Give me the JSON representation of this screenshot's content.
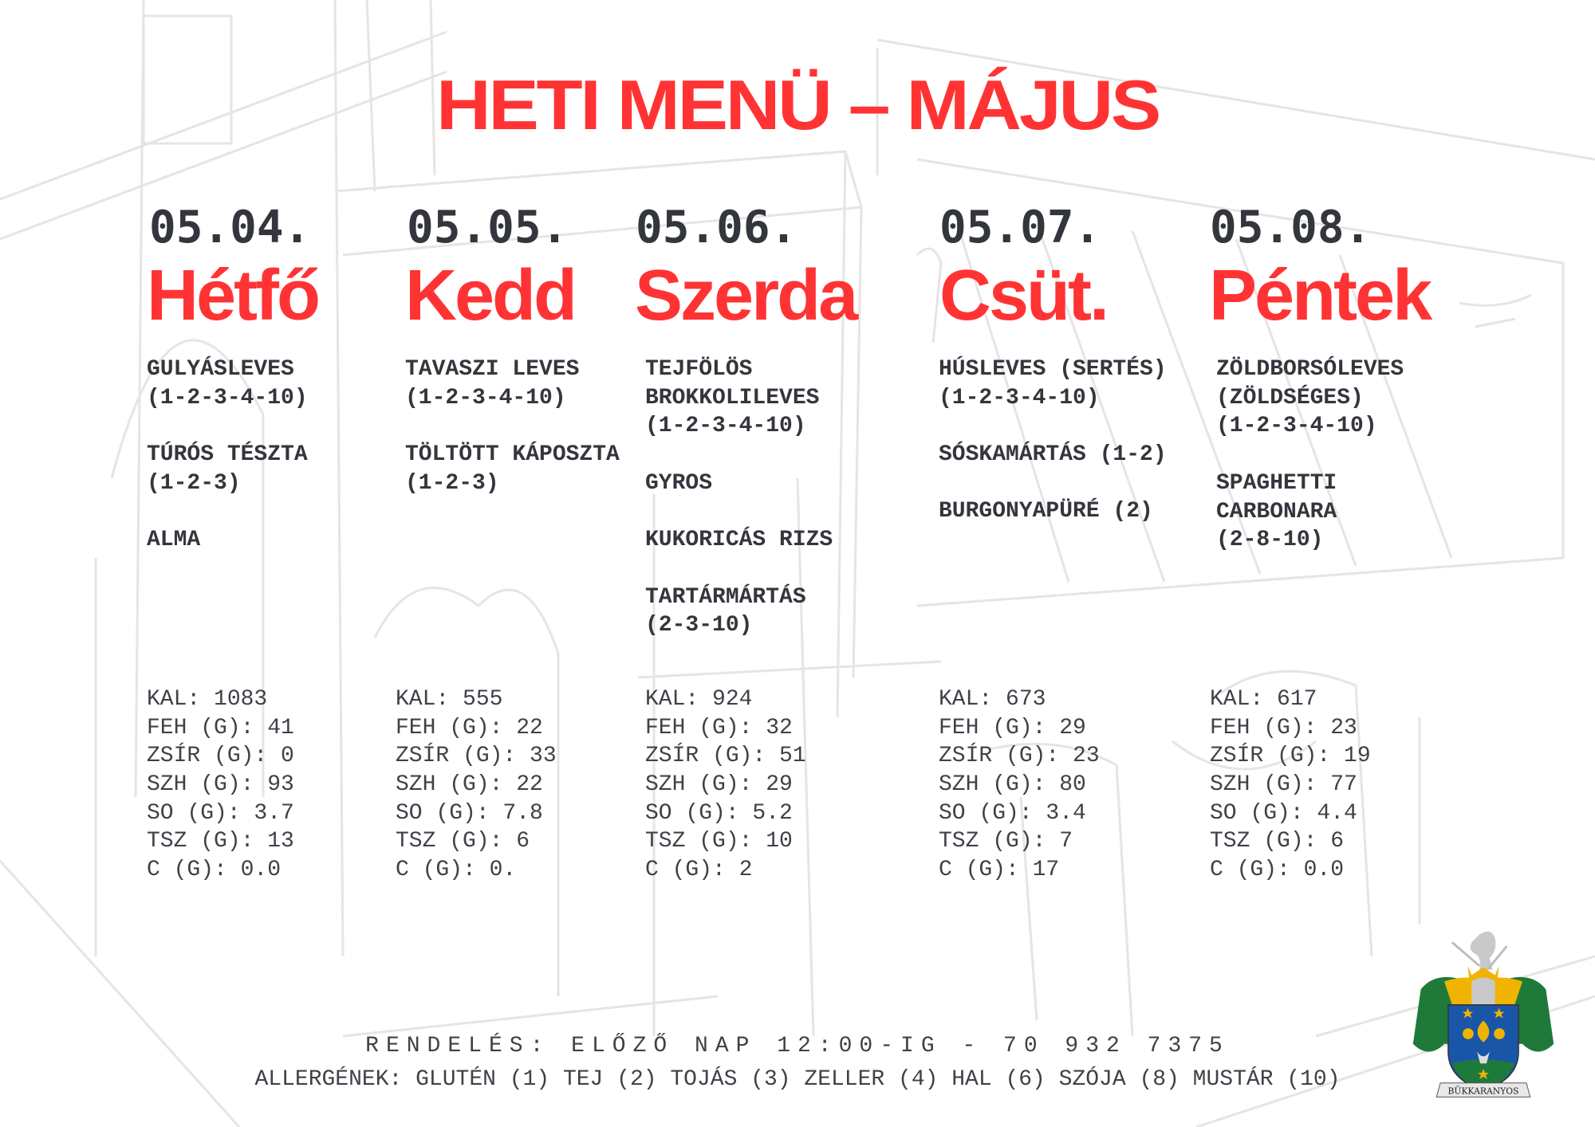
{
  "title": "HETI MENÜ – MÁJUS",
  "days": [
    {
      "date": "05.04.",
      "name": "Hétfő",
      "dishes": [
        "GULYÁSLEVES\n(1-2-3-4-10)",
        "TÚRÓS TÉSZTA\n(1-2-3)",
        "ALMA"
      ],
      "nutrition": [
        "KAL: 1083",
        "FEH (G): 41",
        "ZSÍR (G): 0",
        "SZH (G): 93",
        "SO (G): 3.7",
        "TSZ (G): 13",
        "C (G): 0.0"
      ]
    },
    {
      "date": "05.05.",
      "name": "Kedd",
      "dishes": [
        "TAVASZI LEVES\n(1-2-3-4-10)",
        "TÖLTÖTT KÁPOSZTA\n(1-2-3)"
      ],
      "nutrition": [
        "KAL: 555",
        "FEH (G): 22",
        "ZSÍR (G): 33",
        "SZH (G): 22",
        "SO (G): 7.8",
        "TSZ (G): 6",
        "C (G): 0."
      ]
    },
    {
      "date": "05.06.",
      "name": "Szerda",
      "dishes": [
        "TEJFÖLÖS\nBROKKOLILEVES\n(1-2-3-4-10)",
        "GYROS",
        "KUKORICÁS RIZS",
        "TARTÁRMÁRTÁS\n(2-3-10)"
      ],
      "nutrition": [
        "KAL: 924",
        "FEH (G): 32",
        "ZSÍR (G): 51",
        "SZH (G): 29",
        "SO (G): 5.2",
        "TSZ (G): 10",
        "C (G): 2"
      ]
    },
    {
      "date": "05.07.",
      "name": "Csüt.",
      "dishes": [
        "HÚSLEVES (SERTÉS)\n(1-2-3-4-10)",
        "SÓSKAMÁRTÁS (1-2)",
        "BURGONYAPÜRÉ (2)"
      ],
      "nutrition": [
        "KAL: 673",
        "FEH (G): 29",
        "ZSÍR (G): 23",
        "SZH (G): 80",
        "SO (G): 3.4",
        "TSZ (G): 7",
        "C (G): 17"
      ]
    },
    {
      "date": "05.08.",
      "name": "Péntek",
      "dishes": [
        "ZÖLDBORSÓLEVES\n(ZÖLDSÉGES)\n(1-2-3-4-10)",
        "SPAGHETTI\nCARBONARA\n(2-8-10)"
      ],
      "nutrition": [
        "KAL: 617",
        "FEH (G): 23",
        "ZSÍR (G): 19",
        "SZH (G): 77",
        "SO (G): 4.4",
        "TSZ (G): 6",
        "C (G): 0.0"
      ]
    }
  ],
  "footer": {
    "order": "RENDELÉS: ELŐZŐ NAP 12:00-IG - 70 932 7375",
    "allergens": "ALLERGÉNEK: GLUTÉN (1) TEJ (2) TOJÁS (3) ZELLER (4) HAL (6) SZÓJA (8) MUSTÁR (10)"
  },
  "logo": {
    "text": "BÜKKARANYOS",
    "icon": "coat-of-arms"
  },
  "colors": {
    "accent": "#ff3334",
    "text": "#34363d",
    "sketch": "#e6e4e4"
  }
}
